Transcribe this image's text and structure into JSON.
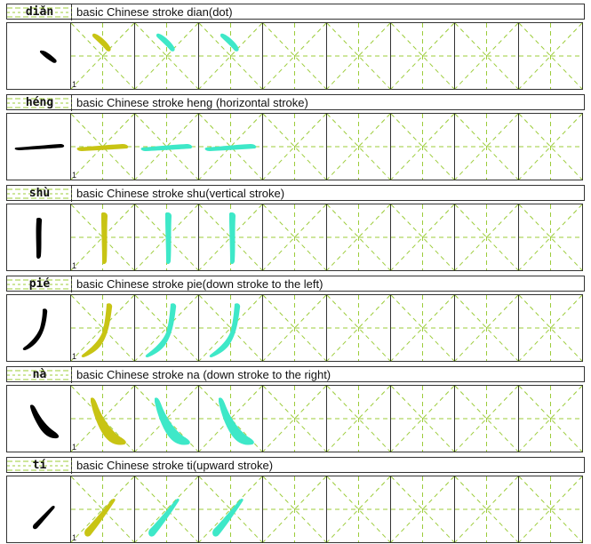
{
  "colors": {
    "guide": "#9ccc3a",
    "ink": "#000000",
    "trace_olive": "#c8c414",
    "trace_aqua": "#3ee8c8",
    "border": "#333333"
  },
  "grid": {
    "practice_columns": 8,
    "traced_columns": 3
  },
  "strokes": [
    {
      "id": "dian",
      "pinyin": "diǎn",
      "description": "basic Chinese stroke dian(dot)",
      "cell_number": "1"
    },
    {
      "id": "heng",
      "pinyin": "héng",
      "description": "basic Chinese stroke heng (horizontal stroke)",
      "cell_number": "1"
    },
    {
      "id": "shu",
      "pinyin": "shù",
      "description": "basic Chinese stroke shu(vertical stroke)",
      "cell_number": "1"
    },
    {
      "id": "pie",
      "pinyin": "pié",
      "description": "basic Chinese stroke pie(down stroke to the left)",
      "cell_number": "1"
    },
    {
      "id": "na",
      "pinyin": "nà",
      "description": "basic Chinese stroke na (down stroke to the right)",
      "cell_number": "1"
    },
    {
      "id": "ti",
      "pinyin": "tí",
      "description": "basic Chinese stroke ti(upward stroke)",
      "cell_number": "1"
    }
  ]
}
